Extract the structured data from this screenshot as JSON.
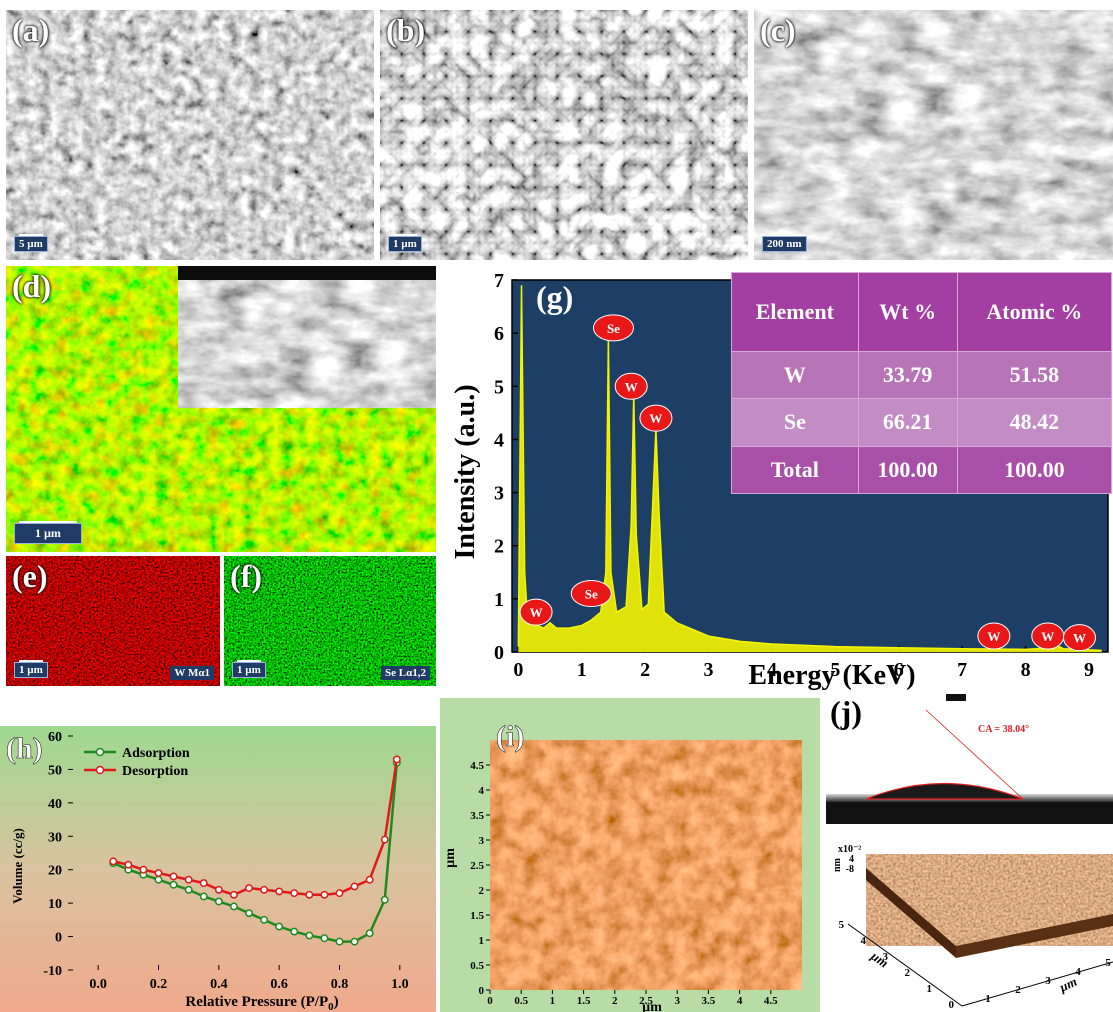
{
  "panels": {
    "a": {
      "label": "(a)",
      "scale": "5 µm"
    },
    "b": {
      "label": "(b)",
      "scale": "1 µm"
    },
    "c": {
      "label": "(c)",
      "scale": "200 nm"
    },
    "d": {
      "label": "(d)",
      "scale": "1 µm"
    },
    "e": {
      "label": "(e)",
      "scale": "1 µm",
      "element": "W Mα1",
      "color": "#d01010"
    },
    "f": {
      "label": "(f)",
      "scale": "1 µm",
      "element": "Se Lα1,2",
      "color": "#18c018"
    },
    "g": {
      "label": "(g)"
    },
    "h": {
      "label": "(h)"
    },
    "i": {
      "label": "(i)"
    },
    "j": {
      "label": "(j)",
      "contact_angle": "CA = 38.04°",
      "zaxis_scale": "x10⁻²"
    }
  },
  "edx_table": {
    "headers": [
      "Element",
      "Wt %",
      "Atomic %"
    ],
    "rows": [
      [
        "W",
        "33.79",
        "51.58"
      ],
      [
        "Se",
        "66.21",
        "48.42"
      ],
      [
        "Total",
        "100.00",
        "100.00"
      ]
    ]
  },
  "chart_data": [
    {
      "id": "g",
      "type": "line",
      "xlabel": "Energy (KeV)",
      "ylabel": "Intensity (a.u.)",
      "xlim": [
        -0.1,
        9.3
      ],
      "ylim": [
        0,
        7
      ],
      "xticks": [
        0,
        1,
        2,
        3,
        4,
        5,
        6,
        7,
        8,
        9
      ],
      "yticks": [
        0,
        1,
        2,
        3,
        4,
        5,
        6,
        7
      ],
      "background": "#1d3f66",
      "line_color": "#f5f500",
      "spectrum": [
        [
          0.0,
          0.1
        ],
        [
          0.05,
          6.9
        ],
        [
          0.1,
          1.5
        ],
        [
          0.15,
          0.5
        ],
        [
          0.2,
          0.65
        ],
        [
          0.3,
          0.5
        ],
        [
          0.4,
          0.45
        ],
        [
          0.5,
          0.55
        ],
        [
          0.6,
          0.45
        ],
        [
          0.8,
          0.45
        ],
        [
          1.0,
          0.5
        ],
        [
          1.15,
          0.6
        ],
        [
          1.3,
          0.75
        ],
        [
          1.38,
          1.5
        ],
        [
          1.42,
          5.9
        ],
        [
          1.46,
          1.5
        ],
        [
          1.55,
          0.75
        ],
        [
          1.7,
          0.85
        ],
        [
          1.78,
          2.4
        ],
        [
          1.82,
          4.85
        ],
        [
          1.86,
          2.2
        ],
        [
          1.95,
          0.8
        ],
        [
          2.05,
          0.9
        ],
        [
          2.12,
          2.8
        ],
        [
          2.17,
          4.2
        ],
        [
          2.22,
          2.6
        ],
        [
          2.3,
          0.75
        ],
        [
          2.5,
          0.55
        ],
        [
          3.0,
          0.3
        ],
        [
          3.5,
          0.2
        ],
        [
          4.0,
          0.15
        ],
        [
          5.0,
          0.1
        ],
        [
          6.0,
          0.08
        ],
        [
          7.0,
          0.06
        ],
        [
          8.0,
          0.05
        ],
        [
          8.4,
          0.08
        ],
        [
          8.5,
          0.12
        ],
        [
          8.6,
          0.06
        ],
        [
          9.0,
          0.04
        ],
        [
          9.2,
          0.03
        ]
      ],
      "peak_labels": [
        {
          "text": "Se",
          "x": 1.5,
          "y": 6.1
        },
        {
          "text": "W",
          "x": 1.78,
          "y": 5.0
        },
        {
          "text": "W",
          "x": 2.17,
          "y": 4.4
        },
        {
          "text": "Se",
          "x": 1.15,
          "y": 1.1
        },
        {
          "text": "W",
          "x": 0.28,
          "y": 0.75
        },
        {
          "text": "W",
          "x": 7.5,
          "y": 0.3
        },
        {
          "text": "W",
          "x": 8.35,
          "y": 0.3
        },
        {
          "text": "W",
          "x": 8.85,
          "y": 0.27
        }
      ]
    },
    {
      "id": "h",
      "type": "line",
      "xlabel": "Relative Pressure (P/P",
      "xlabel_sub": "0",
      "xlabel_end": ")",
      "ylabel": "Volume (cc/g)",
      "xlim": [
        -0.1,
        1.1
      ],
      "ylim": [
        -10,
        60
      ],
      "xticks": [
        0.0,
        0.2,
        0.4,
        0.6,
        0.8,
        1.0
      ],
      "yticks": [
        -10,
        0,
        10,
        20,
        30,
        40,
        50,
        60
      ],
      "series": [
        {
          "name": "Adsorption",
          "color": "#1e8a1e",
          "x": [
            0.05,
            0.1,
            0.15,
            0.2,
            0.25,
            0.3,
            0.35,
            0.4,
            0.45,
            0.5,
            0.55,
            0.6,
            0.65,
            0.7,
            0.75,
            0.8,
            0.85,
            0.9,
            0.95,
            0.99
          ],
          "y": [
            22,
            20,
            18.5,
            17,
            15.5,
            14,
            12,
            10.5,
            9,
            7,
            5,
            3,
            1.5,
            0.3,
            -0.5,
            -1.5,
            -1.5,
            1,
            11,
            52
          ]
        },
        {
          "name": "Desorption",
          "color": "#e01818",
          "x": [
            0.05,
            0.1,
            0.15,
            0.2,
            0.25,
            0.3,
            0.35,
            0.4,
            0.45,
            0.5,
            0.55,
            0.6,
            0.65,
            0.7,
            0.75,
            0.8,
            0.85,
            0.9,
            0.95,
            0.99
          ],
          "y": [
            22.5,
            21.5,
            20,
            19,
            18,
            17,
            16,
            14,
            12.5,
            14.5,
            14,
            13.5,
            13,
            12.5,
            12.5,
            13,
            15,
            17,
            29,
            53
          ]
        }
      ]
    },
    {
      "id": "i",
      "type": "heatmap",
      "xlabel": "µm",
      "ylabel": "µm",
      "xticks": [
        "0",
        "0.5",
        "1",
        "1.5",
        "2",
        "2.5",
        "3",
        "3.5",
        "4",
        "4.5"
      ],
      "yticks": [
        "0",
        "0.5",
        "1",
        "1.5",
        "2",
        "2.5",
        "3",
        "3.5",
        "4",
        "4.5"
      ]
    },
    {
      "id": "j",
      "type": "surface",
      "zlabel": "nm",
      "zticks": [
        "4",
        "-8"
      ],
      "xaxis_label": "µm",
      "yaxis_label": "µm",
      "xticks": [
        "0",
        "1",
        "2",
        "3",
        "4",
        "5"
      ],
      "yticks": [
        "1",
        "2",
        "3",
        "4",
        "5"
      ]
    }
  ]
}
